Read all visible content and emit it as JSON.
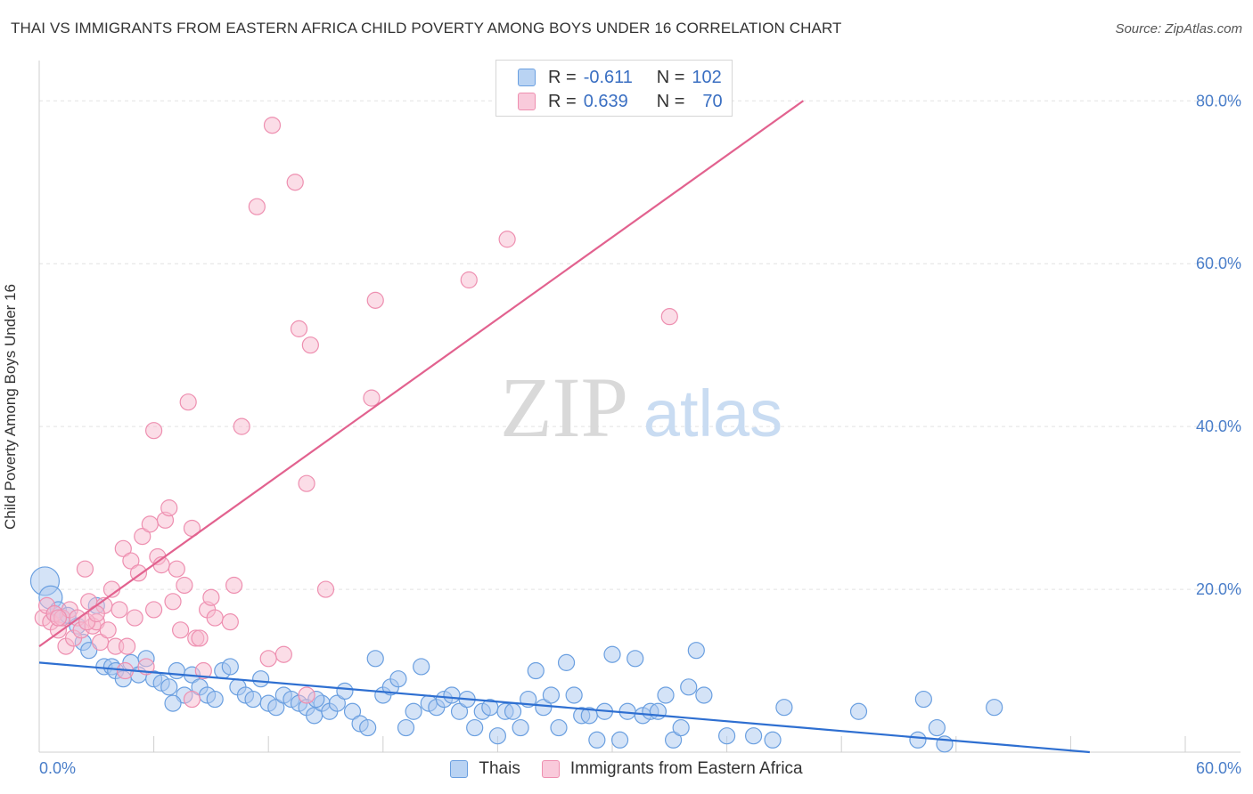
{
  "title": "THAI VS IMMIGRANTS FROM EASTERN AFRICA CHILD POVERTY AMONG BOYS UNDER 16 CORRELATION CHART",
  "source": "Source: ZipAtlas.com",
  "watermark": {
    "zip": "ZIP",
    "atlas": "atlas"
  },
  "colors": {
    "blue": "#6a9fe0",
    "blue_fill": "#a9c8f0",
    "blue_line": "#2e6fd1",
    "pink": "#ee8fb0",
    "pink_fill": "#f7bcd0",
    "pink_line": "#e2628f",
    "tick": "#4a7ec9",
    "grid": "#e2e2e2"
  },
  "legend": {
    "rows": [
      {
        "r_label": "R =",
        "r_value": "-0.611",
        "n_label": "N =",
        "n_value": "102"
      },
      {
        "r_label": "R =",
        "r_value": "0.639",
        "n_label": "N =",
        "n_value": "70"
      }
    ]
  },
  "bottom_legend": {
    "series1": "Thais",
    "series2": "Immigrants from Eastern Africa"
  },
  "chart_data": {
    "type": "scatter",
    "title": "THAI VS IMMIGRANTS FROM EASTERN AFRICA CHILD POVERTY AMONG BOYS UNDER 16 CORRELATION CHART",
    "xlabel": "",
    "ylabel": "Child Poverty Among Boys Under 16",
    "xlim": [
      0,
      60
    ],
    "ylim": [
      0,
      80
    ],
    "x_tick_labels": [
      "0.0%",
      "60.0%"
    ],
    "y_tick_labels": [
      "20.0%",
      "40.0%",
      "60.0%",
      "80.0%"
    ],
    "y_ticks": [
      20,
      40,
      60,
      80
    ],
    "grid": true,
    "legend_position": "top-center",
    "series": [
      {
        "name": "Thais",
        "r": -0.611,
        "n": 102,
        "trend": {
          "x": [
            0,
            55
          ],
          "y": [
            11.0,
            0.0
          ]
        },
        "points": [
          [
            0.3,
            21.0
          ],
          [
            0.6,
            19.0
          ],
          [
            0.8,
            17.0
          ],
          [
            1.0,
            17.5
          ],
          [
            1.2,
            16.5
          ],
          [
            1.5,
            16.8
          ],
          [
            2.0,
            15.5
          ],
          [
            2.3,
            13.5
          ],
          [
            2.6,
            12.5
          ],
          [
            3.0,
            18.0
          ],
          [
            3.4,
            10.5
          ],
          [
            3.8,
            10.5
          ],
          [
            4.0,
            10.0
          ],
          [
            4.4,
            9.0
          ],
          [
            4.8,
            11.0
          ],
          [
            5.2,
            9.5
          ],
          [
            5.6,
            11.5
          ],
          [
            6.0,
            9.0
          ],
          [
            6.4,
            8.5
          ],
          [
            6.8,
            8.0
          ],
          [
            7.2,
            10.0
          ],
          [
            7.6,
            7.0
          ],
          [
            8.0,
            9.5
          ],
          [
            8.4,
            8.0
          ],
          [
            8.8,
            7.0
          ],
          [
            9.2,
            6.5
          ],
          [
            9.6,
            10.0
          ],
          [
            10.0,
            10.5
          ],
          [
            10.4,
            8.0
          ],
          [
            10.8,
            7.0
          ],
          [
            11.2,
            6.5
          ],
          [
            11.6,
            9.0
          ],
          [
            12.0,
            6.0
          ],
          [
            12.4,
            5.5
          ],
          [
            12.8,
            7.0
          ],
          [
            13.2,
            6.5
          ],
          [
            13.6,
            6.0
          ],
          [
            14.0,
            5.5
          ],
          [
            14.4,
            4.5
          ],
          [
            14.8,
            6.0
          ],
          [
            15.2,
            5.0
          ],
          [
            15.6,
            6.0
          ],
          [
            16.0,
            7.5
          ],
          [
            16.4,
            5.0
          ],
          [
            16.8,
            3.5
          ],
          [
            17.2,
            3.0
          ],
          [
            17.6,
            11.5
          ],
          [
            18.0,
            7.0
          ],
          [
            18.4,
            8.0
          ],
          [
            18.8,
            9.0
          ],
          [
            19.2,
            3.0
          ],
          [
            19.6,
            5.0
          ],
          [
            20.0,
            10.5
          ],
          [
            20.4,
            6.0
          ],
          [
            20.8,
            5.5
          ],
          [
            21.2,
            6.5
          ],
          [
            21.6,
            7.0
          ],
          [
            22.0,
            5.0
          ],
          [
            22.4,
            6.5
          ],
          [
            22.8,
            3.0
          ],
          [
            23.2,
            5.0
          ],
          [
            23.6,
            5.5
          ],
          [
            24.0,
            2.0
          ],
          [
            24.4,
            5.0
          ],
          [
            24.8,
            5.0
          ],
          [
            25.2,
            3.0
          ],
          [
            25.6,
            6.5
          ],
          [
            26.0,
            10.0
          ],
          [
            26.4,
            5.5
          ],
          [
            26.8,
            7.0
          ],
          [
            27.2,
            3.0
          ],
          [
            27.6,
            11.0
          ],
          [
            28.0,
            7.0
          ],
          [
            28.4,
            4.5
          ],
          [
            28.8,
            4.5
          ],
          [
            29.2,
            1.5
          ],
          [
            29.6,
            5.0
          ],
          [
            30.0,
            12.0
          ],
          [
            30.4,
            1.5
          ],
          [
            30.8,
            5.0
          ],
          [
            31.2,
            11.5
          ],
          [
            31.6,
            4.5
          ],
          [
            32.0,
            5.0
          ],
          [
            32.4,
            5.0
          ],
          [
            32.8,
            7.0
          ],
          [
            33.2,
            1.5
          ],
          [
            33.6,
            3.0
          ],
          [
            34.0,
            8.0
          ],
          [
            34.4,
            12.5
          ],
          [
            34.8,
            7.0
          ],
          [
            36.0,
            2.0
          ],
          [
            37.4,
            2.0
          ],
          [
            38.4,
            1.5
          ],
          [
            39.0,
            5.5
          ],
          [
            42.9,
            5.0
          ],
          [
            46.0,
            1.5
          ],
          [
            46.3,
            6.5
          ],
          [
            47.0,
            3.0
          ],
          [
            47.4,
            1.0
          ],
          [
            50.0,
            5.5
          ],
          [
            7.0,
            6.0
          ],
          [
            14.5,
            6.5
          ]
        ]
      },
      {
        "name": "Immigrants from Eastern Africa",
        "r": 0.639,
        "n": 70,
        "trend": {
          "x": [
            0,
            40
          ],
          "y": [
            13.0,
            80.0
          ]
        },
        "points": [
          [
            0.2,
            16.5
          ],
          [
            0.4,
            18.0
          ],
          [
            0.6,
            16.0
          ],
          [
            0.8,
            17.0
          ],
          [
            1.0,
            15.0
          ],
          [
            1.2,
            16.5
          ],
          [
            1.4,
            13.0
          ],
          [
            1.6,
            17.5
          ],
          [
            1.8,
            14.0
          ],
          [
            2.0,
            16.5
          ],
          [
            2.2,
            15.0
          ],
          [
            2.4,
            22.5
          ],
          [
            2.6,
            18.5
          ],
          [
            2.8,
            15.5
          ],
          [
            3.0,
            16.0
          ],
          [
            3.2,
            13.5
          ],
          [
            3.4,
            18.0
          ],
          [
            3.6,
            15.0
          ],
          [
            3.8,
            20.0
          ],
          [
            4.0,
            13.0
          ],
          [
            4.2,
            17.5
          ],
          [
            4.4,
            25.0
          ],
          [
            4.6,
            13.0
          ],
          [
            4.8,
            23.5
          ],
          [
            5.0,
            16.5
          ],
          [
            5.2,
            22.0
          ],
          [
            5.4,
            26.5
          ],
          [
            5.6,
            10.5
          ],
          [
            5.8,
            28.0
          ],
          [
            6.0,
            17.5
          ],
          [
            6.2,
            24.0
          ],
          [
            6.4,
            23.0
          ],
          [
            6.6,
            28.5
          ],
          [
            6.8,
            30.0
          ],
          [
            7.0,
            18.5
          ],
          [
            7.2,
            22.5
          ],
          [
            7.4,
            15.0
          ],
          [
            7.6,
            20.5
          ],
          [
            7.8,
            43.0
          ],
          [
            8.0,
            27.5
          ],
          [
            8.2,
            14.0
          ],
          [
            8.4,
            14.0
          ],
          [
            8.6,
            10.0
          ],
          [
            8.8,
            17.5
          ],
          [
            9.0,
            19.0
          ],
          [
            9.2,
            16.5
          ],
          [
            6.0,
            39.5
          ],
          [
            10.0,
            16.0
          ],
          [
            10.2,
            20.5
          ],
          [
            10.6,
            40.0
          ],
          [
            11.4,
            67.0
          ],
          [
            12.2,
            77.0
          ],
          [
            12.8,
            12.0
          ],
          [
            13.4,
            70.0
          ],
          [
            13.6,
            52.0
          ],
          [
            14.0,
            33.0
          ],
          [
            14.2,
            50.0
          ],
          [
            15.0,
            20.0
          ],
          [
            17.6,
            55.5
          ],
          [
            17.4,
            43.5
          ],
          [
            22.5,
            58.0
          ],
          [
            24.5,
            63.0
          ],
          [
            33.0,
            53.5
          ],
          [
            14.0,
            7.0
          ],
          [
            1.0,
            16.5
          ],
          [
            2.5,
            16.0
          ],
          [
            3.0,
            17.0
          ],
          [
            8.0,
            6.5
          ],
          [
            12.0,
            11.5
          ],
          [
            4.5,
            10.0
          ]
        ]
      }
    ]
  }
}
